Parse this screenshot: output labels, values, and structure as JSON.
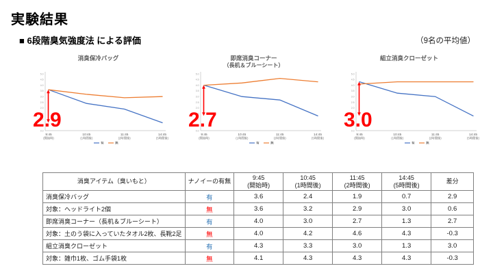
{
  "page": {
    "title": "実験結果",
    "subtitle": "■ 6段階臭気強度法 による評価",
    "note": "（9名の平均値）"
  },
  "colors": {
    "with_nanoe": "#4472c4",
    "without_nanoe": "#ed7d31",
    "accent_red": "#ff0000",
    "with_nanoe_text": "#2e75b6",
    "without_nanoe_text": "#ff0000"
  },
  "legend": {
    "with": "有",
    "without": "無"
  },
  "chart_data": [
    {
      "type": "line",
      "title": "消臭保冷バッグ",
      "subtitle": "",
      "x": [
        "9:45",
        "10:45",
        "11:45",
        "14:45"
      ],
      "x_sub": [
        "(開始時)",
        "(1時間後)",
        "(2時間後)",
        "(5時間後)"
      ],
      "ylim": [
        0,
        5
      ],
      "ytick_step": 0.5,
      "series": [
        {
          "name": "有",
          "color_key": "with_nanoe",
          "values": [
            3.6,
            2.4,
            1.9,
            0.7
          ]
        },
        {
          "name": "無",
          "color_key": "without_nanoe",
          "values": [
            3.6,
            3.2,
            2.9,
            3.0
          ]
        }
      ],
      "diff_label": "2.9"
    },
    {
      "type": "line",
      "title": "即席消臭コーナー",
      "subtitle": "（長机＆ブルーシート）",
      "x": [
        "9:45",
        "10:45",
        "11:45",
        "14:45"
      ],
      "x_sub": [
        "(開始時)",
        "(1時間後)",
        "(2時間後)",
        "(5時間後)"
      ],
      "ylim": [
        0,
        5
      ],
      "ytick_step": 0.5,
      "series": [
        {
          "name": "有",
          "color_key": "with_nanoe",
          "values": [
            4.0,
            3.0,
            2.7,
            1.3
          ]
        },
        {
          "name": "無",
          "color_key": "without_nanoe",
          "values": [
            4.0,
            4.2,
            4.6,
            4.3
          ]
        }
      ],
      "diff_label": "2.7"
    },
    {
      "type": "line",
      "title": "組立消臭クローゼット",
      "subtitle": "",
      "x": [
        "9:45",
        "10:45",
        "11:45",
        "14:45"
      ],
      "x_sub": [
        "(開始時)",
        "(1時間後)",
        "(2時間後)",
        "(5時間後)"
      ],
      "ylim": [
        0,
        5
      ],
      "ytick_step": 0.5,
      "series": [
        {
          "name": "有",
          "color_key": "with_nanoe",
          "values": [
            4.3,
            3.3,
            3.0,
            1.3
          ]
        },
        {
          "name": "無",
          "color_key": "without_nanoe",
          "values": [
            4.1,
            4.3,
            4.3,
            4.3
          ]
        }
      ],
      "diff_label": "3.0"
    }
  ],
  "table": {
    "headers": [
      {
        "label": "消臭アイテム（臭いもと）",
        "sub": ""
      },
      {
        "label": "ナノイーの有無",
        "sub": ""
      },
      {
        "label": "9:45",
        "sub": "(開始時)"
      },
      {
        "label": "10:45",
        "sub": "(1時間後)"
      },
      {
        "label": "11:45",
        "sub": "(2時間後)"
      },
      {
        "label": "14:45",
        "sub": "(5時間後)"
      },
      {
        "label": "差分",
        "sub": ""
      }
    ],
    "rows": [
      {
        "item": "消臭保冷バッグ",
        "nanoe": "有",
        "values": [
          "3.6",
          "2.4",
          "1.9",
          "0.7"
        ],
        "diff": "2.9"
      },
      {
        "item": "対象：ヘッドライト2個",
        "nanoe": "無",
        "values": [
          "3.6",
          "3.2",
          "2.9",
          "3.0"
        ],
        "diff": "0.6"
      },
      {
        "item": "即席消臭コーナー（長机＆ブルーシート）",
        "nanoe": "有",
        "values": [
          "4.0",
          "3.0",
          "2.7",
          "1.3"
        ],
        "diff": "2.7"
      },
      {
        "item": "対象：土のう袋に入っていたタオル2枚、長靴2足",
        "nanoe": "無",
        "values": [
          "4.0",
          "4.2",
          "4.6",
          "4.3"
        ],
        "diff": "-0.3"
      },
      {
        "item": "組立消臭クローゼット",
        "nanoe": "有",
        "values": [
          "4.3",
          "3.3",
          "3.0",
          "1.3"
        ],
        "diff": "3.0"
      },
      {
        "item": "対象：雑巾1枚、ゴム手袋1枚",
        "nanoe": "無",
        "values": [
          "4.1",
          "4.3",
          "4.3",
          "4.3"
        ],
        "diff": "-0.3"
      }
    ]
  }
}
